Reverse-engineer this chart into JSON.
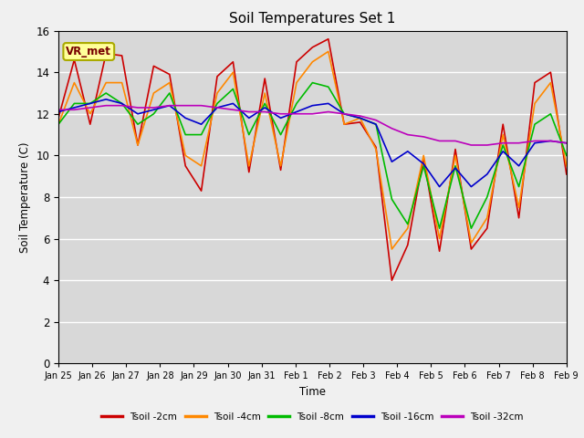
{
  "title": "Soil Temperatures Set 1",
  "xlabel": "Time",
  "ylabel": "Soil Temperature (C)",
  "ylim": [
    0,
    16
  ],
  "annotation": "VR_met",
  "plot_bg_color": "#d8d8d8",
  "fig_bg_color": "#f0f0f0",
  "tick_labels": [
    "Jan 25",
    "Jan 26",
    "Jan 27",
    "Jan 28",
    "Jan 29",
    "Jan 30",
    "Jan 31",
    "Feb 1",
    "Feb 2",
    "Feb 3",
    "Feb 4",
    "Feb 5",
    "Feb 6",
    "Feb 7",
    "Feb 8",
    "Feb 9"
  ],
  "series_order": [
    "Tsoil -2cm",
    "Tsoil -4cm",
    "Tsoil -8cm",
    "Tsoil -16cm",
    "Tsoil -32cm"
  ],
  "series": {
    "Tsoil -2cm": {
      "color": "#cc0000",
      "lw": 1.2,
      "y": [
        11.8,
        14.6,
        11.5,
        14.9,
        14.8,
        10.5,
        14.3,
        13.9,
        9.5,
        8.3,
        13.8,
        14.5,
        9.2,
        13.7,
        9.3,
        14.5,
        15.2,
        15.6,
        11.5,
        11.6,
        10.4,
        4.0,
        5.7,
        9.9,
        5.4,
        10.3,
        5.5,
        6.5,
        11.5,
        7.0,
        13.5,
        14.0,
        9.1
      ]
    },
    "Tsoil -4cm": {
      "color": "#ff8800",
      "lw": 1.2,
      "y": [
        11.5,
        13.5,
        12.0,
        13.5,
        13.5,
        10.5,
        13.0,
        13.5,
        10.0,
        9.5,
        13.0,
        14.0,
        9.5,
        13.0,
        9.5,
        13.5,
        14.5,
        15.0,
        11.5,
        11.8,
        10.3,
        5.5,
        6.5,
        10.0,
        6.0,
        10.0,
        5.8,
        7.0,
        11.0,
        7.5,
        12.5,
        13.5,
        9.5
      ]
    },
    "Tsoil -8cm": {
      "color": "#00bb00",
      "lw": 1.2,
      "y": [
        11.5,
        12.5,
        12.5,
        13.0,
        12.5,
        11.5,
        12.0,
        13.0,
        11.0,
        11.0,
        12.5,
        13.2,
        11.0,
        12.5,
        11.0,
        12.5,
        13.5,
        13.3,
        12.0,
        11.8,
        11.5,
        7.9,
        6.7,
        9.5,
        6.5,
        9.5,
        6.5,
        8.0,
        10.5,
        8.5,
        11.5,
        12.0,
        10.0
      ]
    },
    "Tsoil -16cm": {
      "color": "#0000cc",
      "lw": 1.2,
      "y": [
        12.1,
        12.3,
        12.5,
        12.7,
        12.5,
        12.0,
        12.2,
        12.4,
        11.8,
        11.5,
        12.3,
        12.5,
        11.8,
        12.3,
        11.8,
        12.1,
        12.4,
        12.5,
        12.0,
        11.8,
        11.5,
        9.7,
        10.2,
        9.6,
        8.5,
        9.4,
        8.5,
        9.1,
        10.2,
        9.5,
        10.6,
        10.7,
        10.6
      ]
    },
    "Tsoil -32cm": {
      "color": "#bb00bb",
      "lw": 1.2,
      "y": [
        12.2,
        12.2,
        12.3,
        12.4,
        12.4,
        12.3,
        12.3,
        12.4,
        12.4,
        12.4,
        12.3,
        12.2,
        12.1,
        12.1,
        12.0,
        12.0,
        12.0,
        12.1,
        12.0,
        11.9,
        11.7,
        11.3,
        11.0,
        10.9,
        10.7,
        10.7,
        10.5,
        10.5,
        10.6,
        10.6,
        10.7,
        10.7,
        10.6
      ]
    }
  }
}
